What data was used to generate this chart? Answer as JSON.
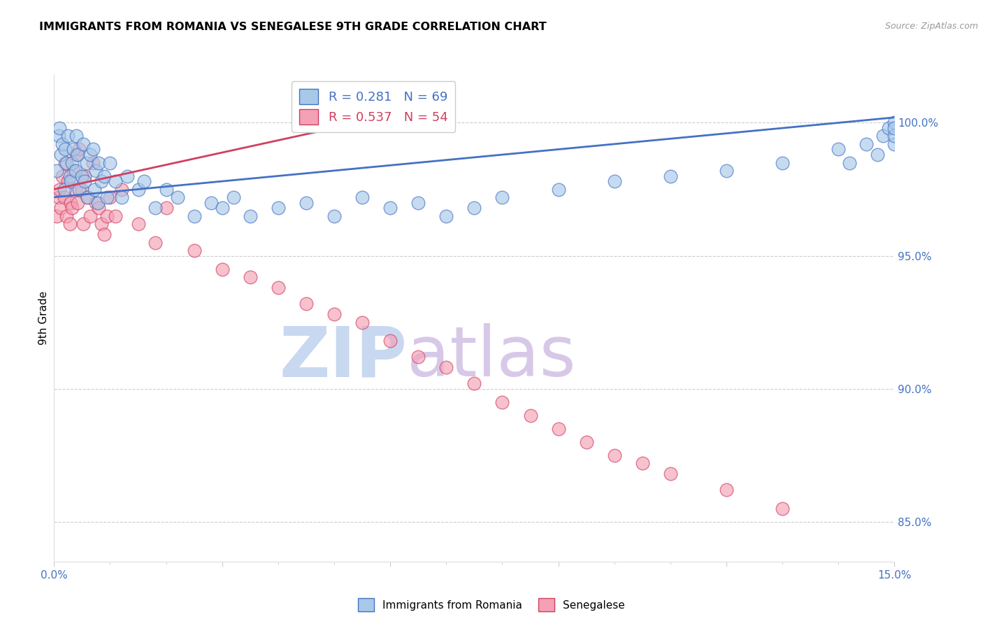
{
  "title": "IMMIGRANTS FROM ROMANIA VS SENEGALESE 9TH GRADE CORRELATION CHART",
  "source": "Source: ZipAtlas.com",
  "ylabel": "9th Grade",
  "ylabel_right_ticks": [
    100.0,
    95.0,
    90.0,
    85.0
  ],
  "ylabel_right_labels": [
    "100.0%",
    "95.0%",
    "90.0%",
    "85.0%"
  ],
  "xlim": [
    0.0,
    15.0
  ],
  "ylim": [
    83.5,
    101.8
  ],
  "legend_romania": "R = 0.281   N = 69",
  "legend_senegal": "R = 0.537   N = 54",
  "color_romania": "#a8c8e8",
  "color_senegal": "#f4a0b5",
  "color_romania_line": "#4472c4",
  "color_senegal_line": "#d04060",
  "color_right_axis": "#4472c4",
  "watermark_zip": "ZIP",
  "watermark_atlas": "atlas",
  "watermark_color_zip": "#c8d8f0",
  "watermark_color_atlas": "#d8c8e8",
  "romania_x": [
    0.05,
    0.08,
    0.1,
    0.12,
    0.15,
    0.18,
    0.2,
    0.22,
    0.25,
    0.28,
    0.3,
    0.32,
    0.35,
    0.38,
    0.4,
    0.42,
    0.45,
    0.5,
    0.52,
    0.55,
    0.58,
    0.6,
    0.65,
    0.7,
    0.72,
    0.75,
    0.78,
    0.8,
    0.85,
    0.9,
    0.95,
    1.0,
    1.1,
    1.2,
    1.3,
    1.5,
    1.6,
    1.8,
    2.0,
    2.2,
    2.5,
    2.8,
    3.0,
    3.2,
    3.5,
    4.0,
    4.5,
    5.0,
    5.5,
    6.0,
    6.5,
    7.0,
    7.5,
    8.0,
    9.0,
    10.0,
    11.0,
    12.0,
    13.0,
    14.0,
    14.2,
    14.5,
    14.7,
    14.8,
    14.9,
    15.0,
    15.0,
    15.0,
    15.0
  ],
  "romania_y": [
    98.2,
    99.5,
    99.8,
    98.8,
    99.2,
    97.5,
    99.0,
    98.5,
    99.5,
    98.0,
    97.8,
    98.5,
    99.0,
    98.2,
    99.5,
    98.8,
    97.5,
    98.0,
    99.2,
    97.8,
    98.5,
    97.2,
    98.8,
    99.0,
    97.5,
    98.2,
    97.0,
    98.5,
    97.8,
    98.0,
    97.2,
    98.5,
    97.8,
    97.2,
    98.0,
    97.5,
    97.8,
    96.8,
    97.5,
    97.2,
    96.5,
    97.0,
    96.8,
    97.2,
    96.5,
    96.8,
    97.0,
    96.5,
    97.2,
    96.8,
    97.0,
    96.5,
    96.8,
    97.2,
    97.5,
    97.8,
    98.0,
    98.2,
    98.5,
    99.0,
    98.5,
    99.2,
    98.8,
    99.5,
    99.8,
    99.2,
    99.5,
    100.0,
    99.8
  ],
  "senegal_x": [
    0.05,
    0.08,
    0.1,
    0.12,
    0.15,
    0.18,
    0.2,
    0.22,
    0.25,
    0.28,
    0.3,
    0.32,
    0.35,
    0.38,
    0.4,
    0.42,
    0.45,
    0.5,
    0.52,
    0.55,
    0.6,
    0.65,
    0.7,
    0.75,
    0.8,
    0.85,
    0.9,
    0.95,
    1.0,
    1.1,
    1.2,
    1.5,
    1.8,
    2.0,
    2.5,
    3.0,
    3.5,
    4.0,
    4.5,
    5.0,
    5.5,
    6.0,
    6.5,
    7.0,
    7.5,
    8.0,
    8.5,
    9.0,
    9.5,
    10.0,
    10.5,
    11.0,
    12.0,
    13.0
  ],
  "senegal_y": [
    96.5,
    97.2,
    97.5,
    96.8,
    98.0,
    97.2,
    98.5,
    96.5,
    97.8,
    96.2,
    97.0,
    96.8,
    98.2,
    97.5,
    98.8,
    97.0,
    99.0,
    97.5,
    96.2,
    98.0,
    97.2,
    96.5,
    98.5,
    97.0,
    96.8,
    96.2,
    95.8,
    96.5,
    97.2,
    96.5,
    97.5,
    96.2,
    95.5,
    96.8,
    95.2,
    94.5,
    94.2,
    93.8,
    93.2,
    92.8,
    92.5,
    91.8,
    91.2,
    90.8,
    90.2,
    89.5,
    89.0,
    88.5,
    88.0,
    87.5,
    87.2,
    86.8,
    86.2,
    85.5
  ],
  "romania_trend_x": [
    0.0,
    15.0
  ],
  "romania_trend_y": [
    97.2,
    100.2
  ],
  "senegal_trend_x": [
    0.0,
    5.0
  ],
  "senegal_trend_y": [
    97.5,
    99.8
  ]
}
